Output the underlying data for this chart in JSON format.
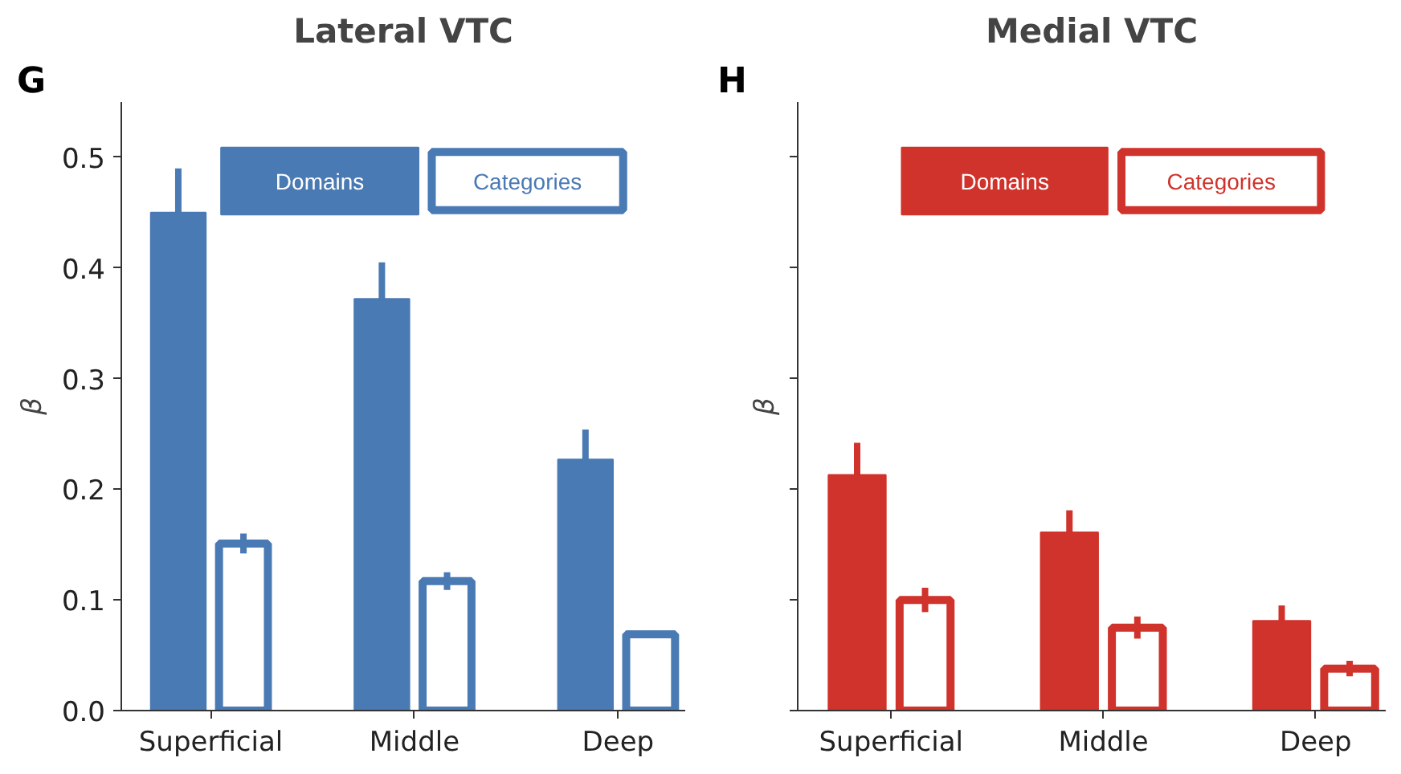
{
  "chart_data": [
    {
      "type": "bar",
      "title": "Lateral VTC",
      "annotations": [
        "G"
      ],
      "ylabel": "β",
      "categories": [
        "Superficial",
        "Middle",
        "Deep"
      ],
      "ylim": [
        0,
        0.55
      ],
      "yticks": [
        {
          "value": 0,
          "label": "0.0"
        },
        0.1,
        0.2,
        0.3,
        0.4,
        0.5
      ],
      "legend": "top",
      "series": [
        {
          "name": "Domains",
          "color": "#4a7ab3",
          "values": [
            0.45,
            0.372,
            0.227
          ],
          "errors": [
            0.04,
            0.033,
            0.027
          ]
        },
        {
          "name": "Categories",
          "color": "#4a7ab3",
          "values": [
            0.151,
            0.117,
            0.069
          ],
          "errors": [
            0.009,
            0.008,
            0.003
          ]
        }
      ]
    },
    {
      "type": "bar",
      "title": "Medial VTC",
      "annotations": [
        "H"
      ],
      "ylabel": "β",
      "categories": [
        "Superficial",
        "Middle",
        "Deep"
      ],
      "ylim": [
        0,
        0.55
      ],
      "yticks": [
        {
          "value": 0,
          "label": null
        },
        {
          "value": 0.1,
          "label": null
        },
        {
          "value": 0.2,
          "label": null
        },
        {
          "value": 0.3,
          "label": null
        },
        {
          "value": 0.4,
          "label": null
        },
        {
          "value": 0.5,
          "label": null
        }
      ],
      "tick_labels": "x",
      "legend": "top",
      "series": [
        {
          "name": "Domains",
          "color": "#d0332b",
          "values": [
            0.213,
            0.161,
            0.081
          ],
          "errors": [
            0.029,
            0.02,
            0.014
          ]
        },
        {
          "name": "Categories",
          "color": "#d0332b",
          "values": [
            0.1,
            0.075,
            0.038
          ],
          "errors": [
            0.011,
            0.01,
            0.007
          ]
        }
      ]
    }
  ]
}
